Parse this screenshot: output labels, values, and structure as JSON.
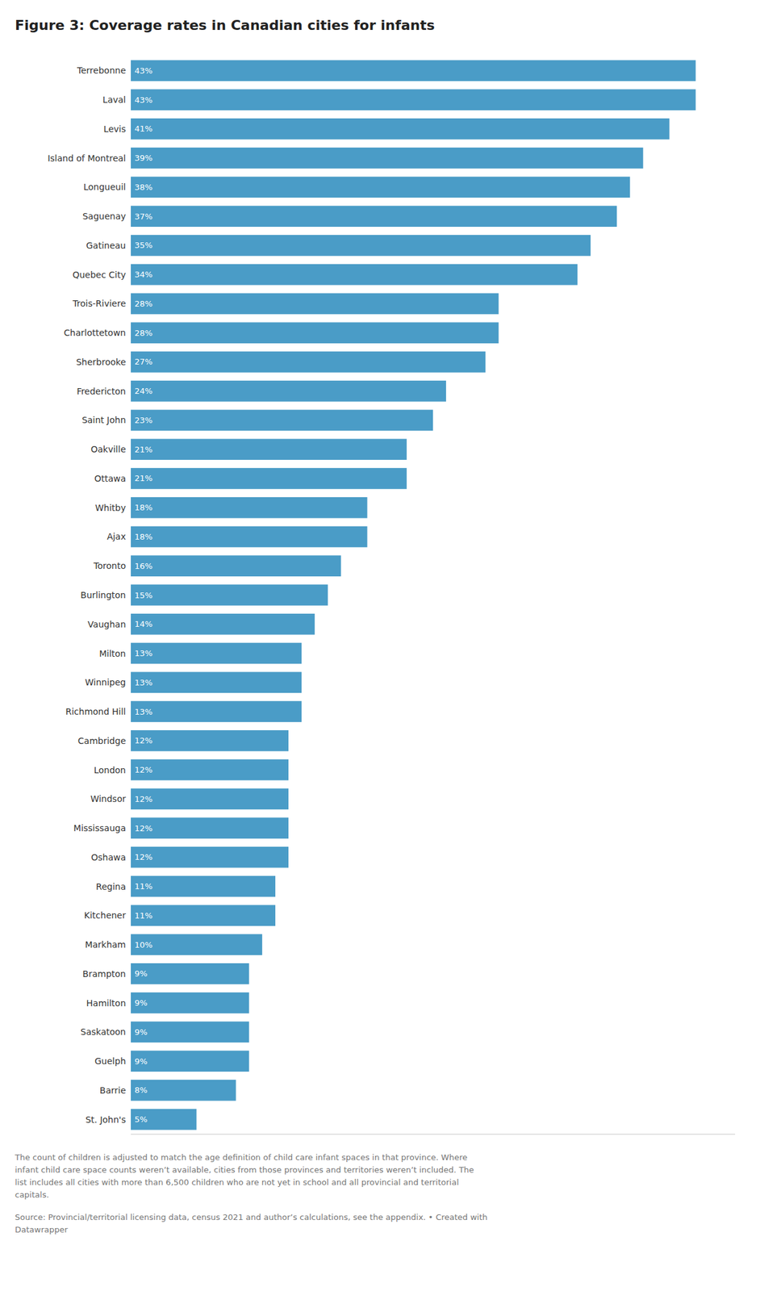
{
  "chart_data": {
    "type": "bar",
    "orientation": "horizontal",
    "title": "Figure 3: Coverage rates in Canadian cities for infants",
    "categories": [
      "Terrebonne",
      "Laval",
      "Levis",
      "Island of Montreal",
      "Longueuil",
      "Saguenay",
      "Gatineau",
      "Quebec City",
      "Trois-Riviere",
      "Charlottetown",
      "Sherbrooke",
      "Fredericton",
      "Saint John",
      "Oakville",
      "Ottawa",
      "Whitby",
      "Ajax",
      "Toronto",
      "Burlington",
      "Vaughan",
      "Milton",
      "Winnipeg",
      "Richmond Hill",
      "Cambridge",
      "London",
      "Windsor",
      "Mississauga",
      "Oshawa",
      "Regina",
      "Kitchener",
      "Markham",
      "Brampton",
      "Hamilton",
      "Saskatoon",
      "Guelph",
      "Barrie",
      "St. John's"
    ],
    "values": [
      43,
      43,
      41,
      39,
      38,
      37,
      35,
      34,
      28,
      28,
      27,
      24,
      23,
      21,
      21,
      18,
      18,
      16,
      15,
      14,
      13,
      13,
      13,
      12,
      12,
      12,
      12,
      12,
      11,
      11,
      10,
      9,
      9,
      9,
      9,
      8,
      5
    ],
    "value_labels": [
      "43%",
      "43%",
      "41%",
      "39%",
      "38%",
      "37%",
      "35%",
      "34%",
      "28%",
      "28%",
      "27%",
      "24%",
      "23%",
      "21%",
      "21%",
      "18%",
      "18%",
      "16%",
      "15%",
      "14%",
      "13%",
      "13%",
      "13%",
      "12%",
      "12%",
      "12%",
      "12%",
      "12%",
      "11%",
      "11%",
      "10%",
      "9%",
      "9%",
      "9%",
      "9%",
      "8%",
      "5%"
    ],
    "data_labels": true,
    "color": "#4a9cc7",
    "xlim": [
      0,
      46
    ],
    "grid": false,
    "tick_labels": "y",
    "annotations": [
      "The count of children is adjusted to match the age definition of child care infant spaces in that province. Where\ninfant child care space counts weren’t available, cities from those provinces and territories weren’t included. The\nlist includes all cities with more than 6,500 children who are not yet in school and all provincial and territorial\ncapitals.",
      "Source: Provincial/territorial licensing data, census 2021 and author’s calculations, see the appendix. • Created with\nDatawrapper"
    ]
  }
}
